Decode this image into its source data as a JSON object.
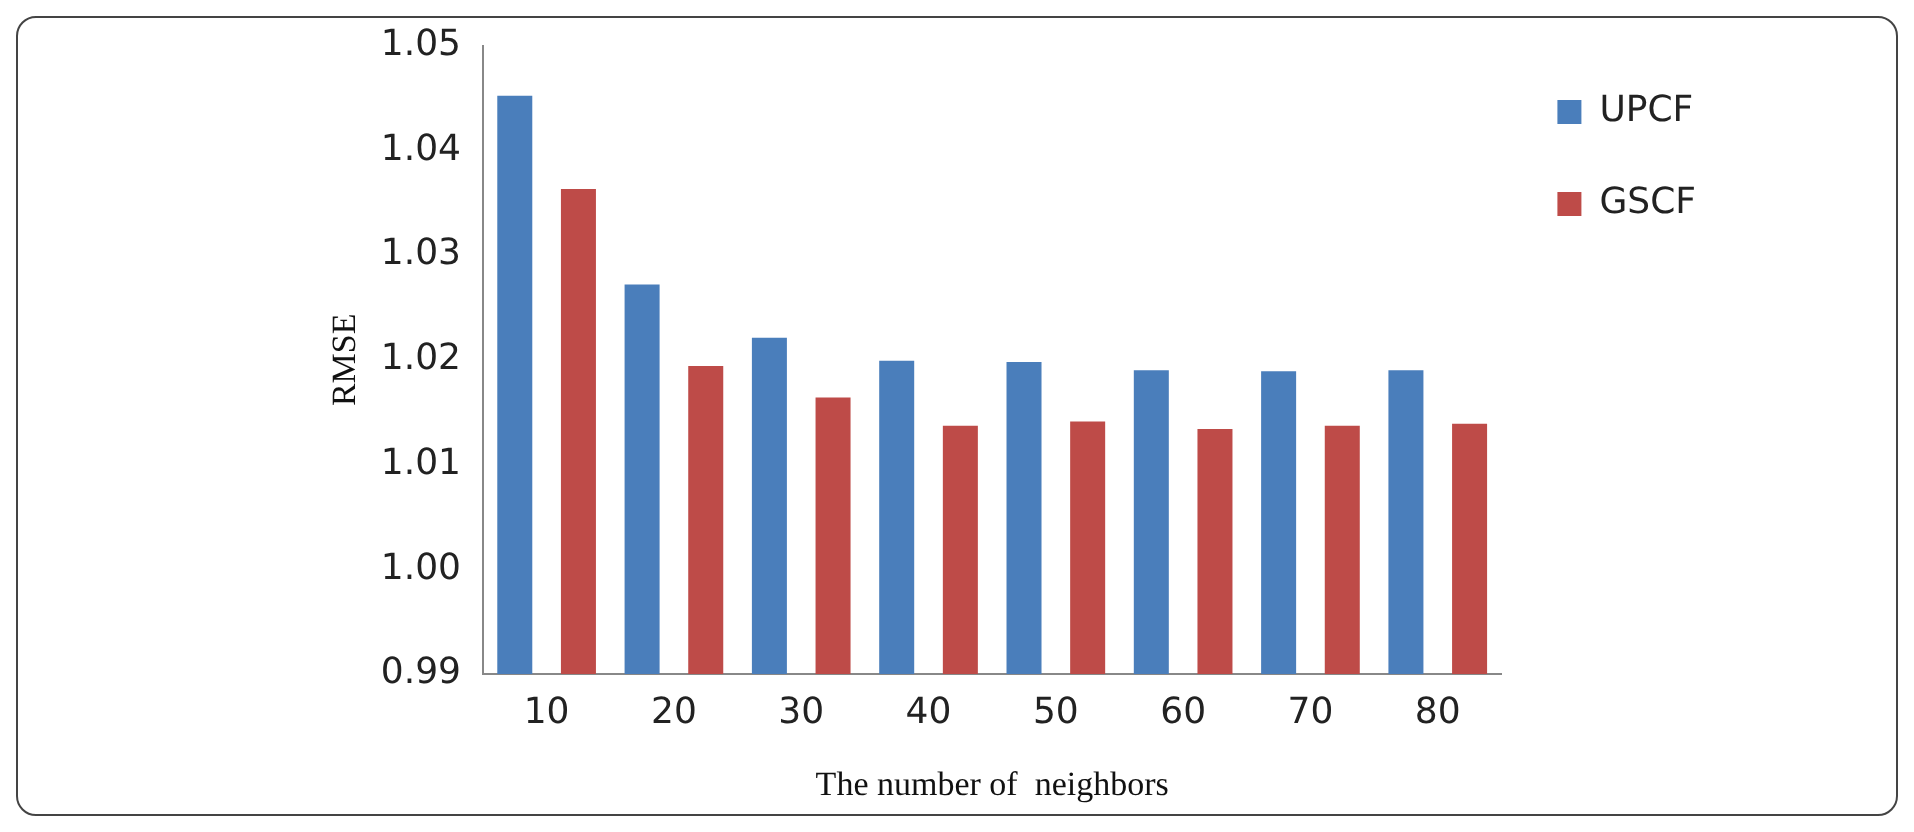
{
  "chart_data": {
    "type": "bar",
    "xlabel": "The number of  neighbors",
    "ylabel": "RMSE",
    "categories": [
      "10",
      "20",
      "30",
      "40",
      "50",
      "60",
      "70",
      "80"
    ],
    "series": [
      {
        "name": "UPCF",
        "color": "#4a7ebb",
        "values": [
          1.0452,
          1.0272,
          1.0221,
          1.0199,
          1.0198,
          1.019,
          1.0189,
          1.019
        ]
      },
      {
        "name": "GSCF",
        "color": "#be4b48",
        "values": [
          1.0363,
          1.0194,
          1.0164,
          1.0137,
          1.0141,
          1.0134,
          1.0137,
          1.0139
        ]
      }
    ],
    "ylim": [
      0.99,
      1.05
    ],
    "yticks": [
      {
        "value": 0.99,
        "label": "0.99"
      },
      {
        "value": 1.0,
        "label": "1.00"
      },
      {
        "value": 1.01,
        "label": "1.01"
      },
      {
        "value": 1.02,
        "label": "1.02"
      },
      {
        "value": 1.03,
        "label": "1.03"
      },
      {
        "value": 1.04,
        "label": "1.04"
      },
      {
        "value": 1.05,
        "label": "1.05"
      }
    ],
    "grid": false,
    "legend": "top right"
  }
}
